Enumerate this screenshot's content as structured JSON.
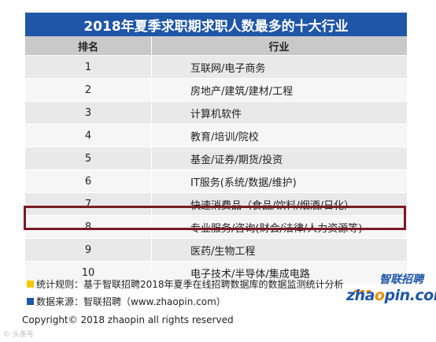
{
  "title": "2018年夏季求职期求职人数最多的十大行业",
  "table": {
    "headers": [
      "排名",
      "行业"
    ],
    "rows": [
      {
        "rank": "1",
        "industry": "互联网/电子商务"
      },
      {
        "rank": "2",
        "industry": "房地产/建筑/建材/工程"
      },
      {
        "rank": "3",
        "industry": "计算机软件"
      },
      {
        "rank": "4",
        "industry": "教育/培训/院校"
      },
      {
        "rank": "5",
        "industry": "基金/证券/期货/投资"
      },
      {
        "rank": "6",
        "industry": "IT服务(系统/数据/维护)"
      },
      {
        "rank": "7",
        "industry": "快速消费品（食品/饮料/烟酒/日化）"
      },
      {
        "rank": "8",
        "industry": "专业服务/咨询(财会/法律/人力资源等)"
      },
      {
        "rank": "9",
        "industry": "医药/生物工程"
      },
      {
        "rank": "10",
        "industry": "电子技术/半导体/集成电路"
      }
    ],
    "highlighted_rank": "8"
  },
  "notes": {
    "rule": "统计规则：基于智联招聘2018年夏季在线招聘数据库的数据监测统计分析",
    "source": "数据来源：智联招聘（www.zhaopin.com）"
  },
  "logo": {
    "cn": "智联招聘",
    "en_prefix": "zha",
    "en_o": "o",
    "en_suffix": "pin.com"
  },
  "copyright": "Copyright© 2018 zhaopin all rights reserved",
  "watermark": "© 头条号",
  "colors": {
    "title_bg": "#1f56a8",
    "highlight_border": "#7b1a24",
    "note_yellow": "#f5c800",
    "brand_orange": "#f08a00"
  }
}
